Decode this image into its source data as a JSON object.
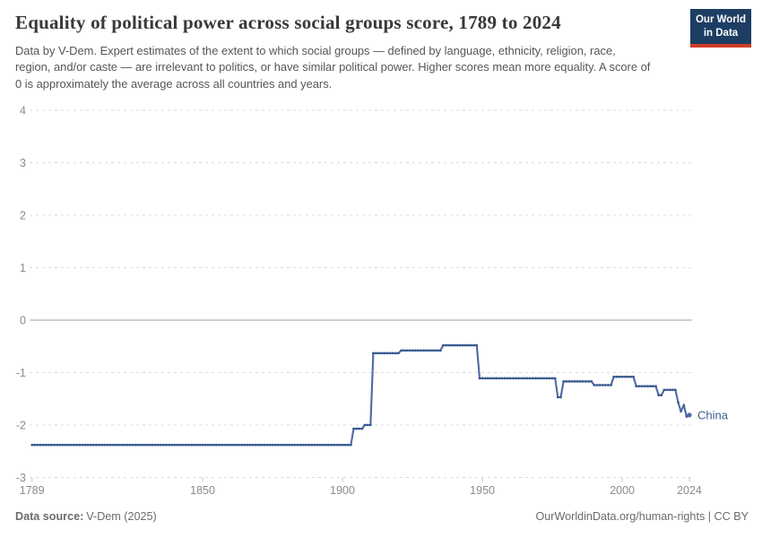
{
  "header": {
    "title": "Equality of political power across social groups score, 1789 to 2024",
    "subtitle": "Data by V-Dem. Expert estimates of the extent to which social groups — defined by language, ethnicity, religion, race, region, and/or caste — are irrelevant to politics, or have similar political power. Higher scores mean more equality. A score of 0 is approximately the average across all countries and years.",
    "logo_line1": "Our World",
    "logo_line2": "in Data",
    "logo_background": "#1d3d63",
    "logo_accent": "#d13c27"
  },
  "footer": {
    "source_label": "Data source:",
    "source_value": "V-Dem (2025)",
    "attribution": "OurWorldinData.org/human-rights | CC BY"
  },
  "chart_data": {
    "type": "line",
    "title": "Equality of political power across social groups score, 1789 to 2024",
    "xlabel": "",
    "ylabel": "",
    "x": {
      "range": [
        1789,
        2024
      ],
      "ticks": [
        1789,
        1850,
        1900,
        1950,
        2000,
        2024
      ]
    },
    "y": {
      "range": [
        -3,
        4
      ],
      "ticks": [
        4,
        3,
        2,
        1,
        0,
        -1,
        -2,
        -3
      ]
    },
    "grid": "dashed horizontal gridlines, solid zero line",
    "grid_color": "#dcdcdc",
    "zero_line_color": "#a0a0a0",
    "axis_label_color": "#8b8b8b",
    "tick_color": "#c6c6c6",
    "legend_position": "end-of-line label",
    "series": [
      {
        "name": "China",
        "color": "#4d6ba3",
        "dot_color": "#3a5890",
        "label_color": "#3d5c94",
        "points": [
          [
            1789,
            -2.38
          ],
          [
            1903,
            -2.38
          ],
          [
            1904,
            -2.07
          ],
          [
            1907,
            -2.07
          ],
          [
            1908,
            -2.0
          ],
          [
            1910,
            -2.0
          ],
          [
            1911,
            -0.63
          ],
          [
            1920,
            -0.63
          ],
          [
            1921,
            -0.58
          ],
          [
            1935,
            -0.58
          ],
          [
            1936,
            -0.48
          ],
          [
            1948,
            -0.48
          ],
          [
            1949,
            -1.11
          ],
          [
            1976,
            -1.11
          ],
          [
            1977,
            -1.47
          ],
          [
            1978,
            -1.47
          ],
          [
            1979,
            -1.17
          ],
          [
            1989,
            -1.17
          ],
          [
            1990,
            -1.24
          ],
          [
            1996,
            -1.24
          ],
          [
            1997,
            -1.08
          ],
          [
            2004,
            -1.08
          ],
          [
            2005,
            -1.26
          ],
          [
            2012,
            -1.26
          ],
          [
            2013,
            -1.43
          ],
          [
            2014,
            -1.43
          ],
          [
            2015,
            -1.33
          ],
          [
            2019,
            -1.33
          ],
          [
            2020,
            -1.57
          ],
          [
            2021,
            -1.74
          ],
          [
            2022,
            -1.62
          ],
          [
            2023,
            -1.84
          ],
          [
            2024,
            -1.81
          ]
        ]
      }
    ]
  }
}
